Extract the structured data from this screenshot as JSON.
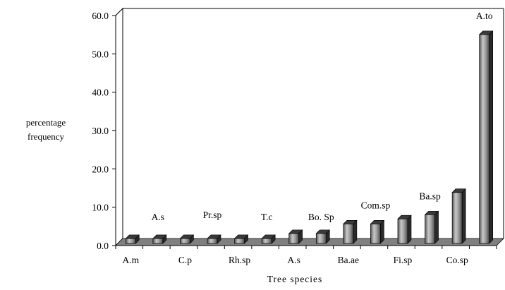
{
  "chart_data": {
    "type": "bar",
    "title": "",
    "ylabel_lines": [
      "percentage",
      "frequency"
    ],
    "xlabel": "Tree species",
    "ylim": [
      0,
      60
    ],
    "yticks": [
      "0.0",
      "10.0",
      "20.0",
      "30.0",
      "40.0",
      "50.0",
      "60.0"
    ],
    "grid": false,
    "legend": "none",
    "bar_color": "#8c8c8c",
    "floor_color": "#808080",
    "values": [
      1.3,
      1.3,
      1.3,
      1.3,
      1.3,
      1.3,
      2.6,
      2.6,
      5.1,
      5.1,
      6.4,
      7.5,
      13.3,
      54.5
    ],
    "bottom_labels": [
      "A.m",
      "C.p",
      "Rh.sp",
      "A.s",
      "Ba.ae",
      "Fi.sp",
      "Co.sp"
    ],
    "top_labels": [
      "A.s",
      "Pr.sp",
      "T.c",
      "Bo. Sp",
      "Com.sp",
      "Ba.sp",
      "A.to"
    ]
  }
}
